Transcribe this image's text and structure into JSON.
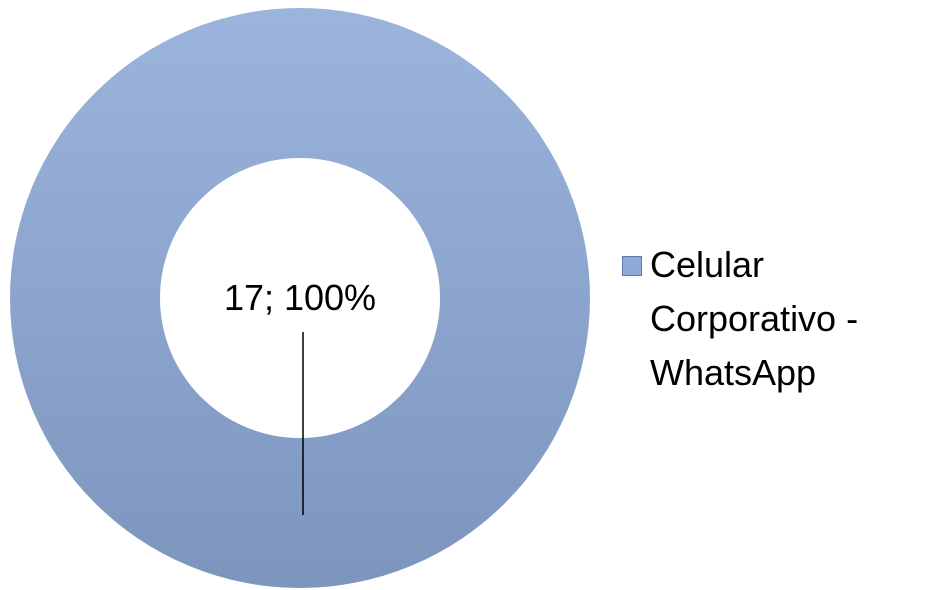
{
  "chart_data": {
    "type": "donut",
    "categories": [
      "Celular Corporativo - WhatsApp"
    ],
    "values": [
      17
    ],
    "value_labels": [
      "17; 100%"
    ],
    "colors": [
      "#8eaad8"
    ],
    "legend": "right"
  }
}
